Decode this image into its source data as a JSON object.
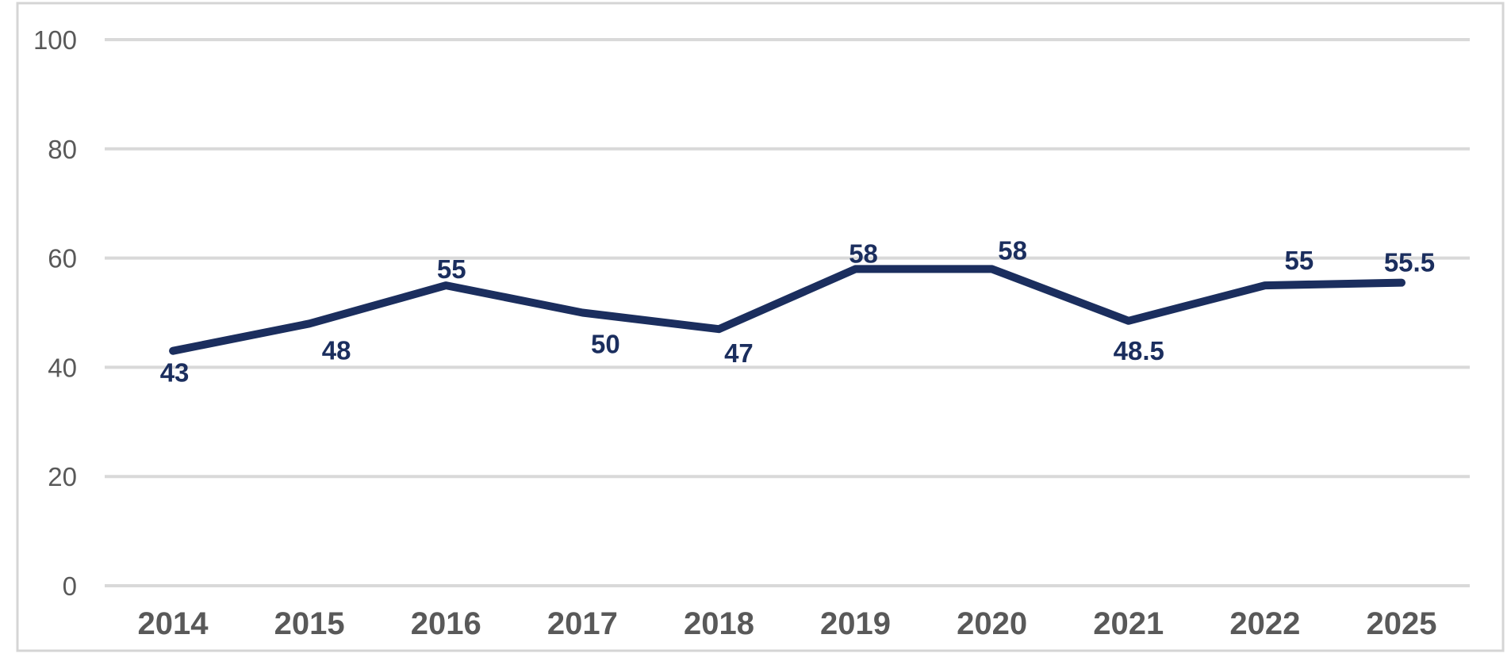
{
  "chart_data": {
    "type": "line",
    "title": "",
    "xlabel": "",
    "ylabel": "",
    "categories": [
      "2014",
      "2015",
      "2016",
      "2017",
      "2018",
      "2019",
      "2020",
      "2021",
      "2022",
      "2025"
    ],
    "series": [
      {
        "name": "series-1",
        "values": [
          43,
          48,
          55,
          50,
          47,
          58,
          58,
          48.5,
          55,
          55.5
        ],
        "data_labels": [
          "43",
          "48",
          "55",
          "50",
          "47",
          "58",
          "58",
          "48.5",
          "55",
          "55.5"
        ],
        "label_positions": [
          "below",
          "below",
          "above",
          "below",
          "below",
          "above",
          "above",
          "below",
          "above",
          "above"
        ]
      }
    ],
    "ylim": [
      0,
      100
    ],
    "yticks": [
      0,
      20,
      40,
      60,
      80,
      100
    ],
    "grid": "horizontal",
    "legend_position": "none"
  },
  "colors": {
    "line": "#1B2E5E",
    "data_label": "#1B2E5E",
    "axis_text": "#595959",
    "gridline": "#D9D9D9",
    "border": "#D5D5D5",
    "background": "#FFFFFF"
  }
}
